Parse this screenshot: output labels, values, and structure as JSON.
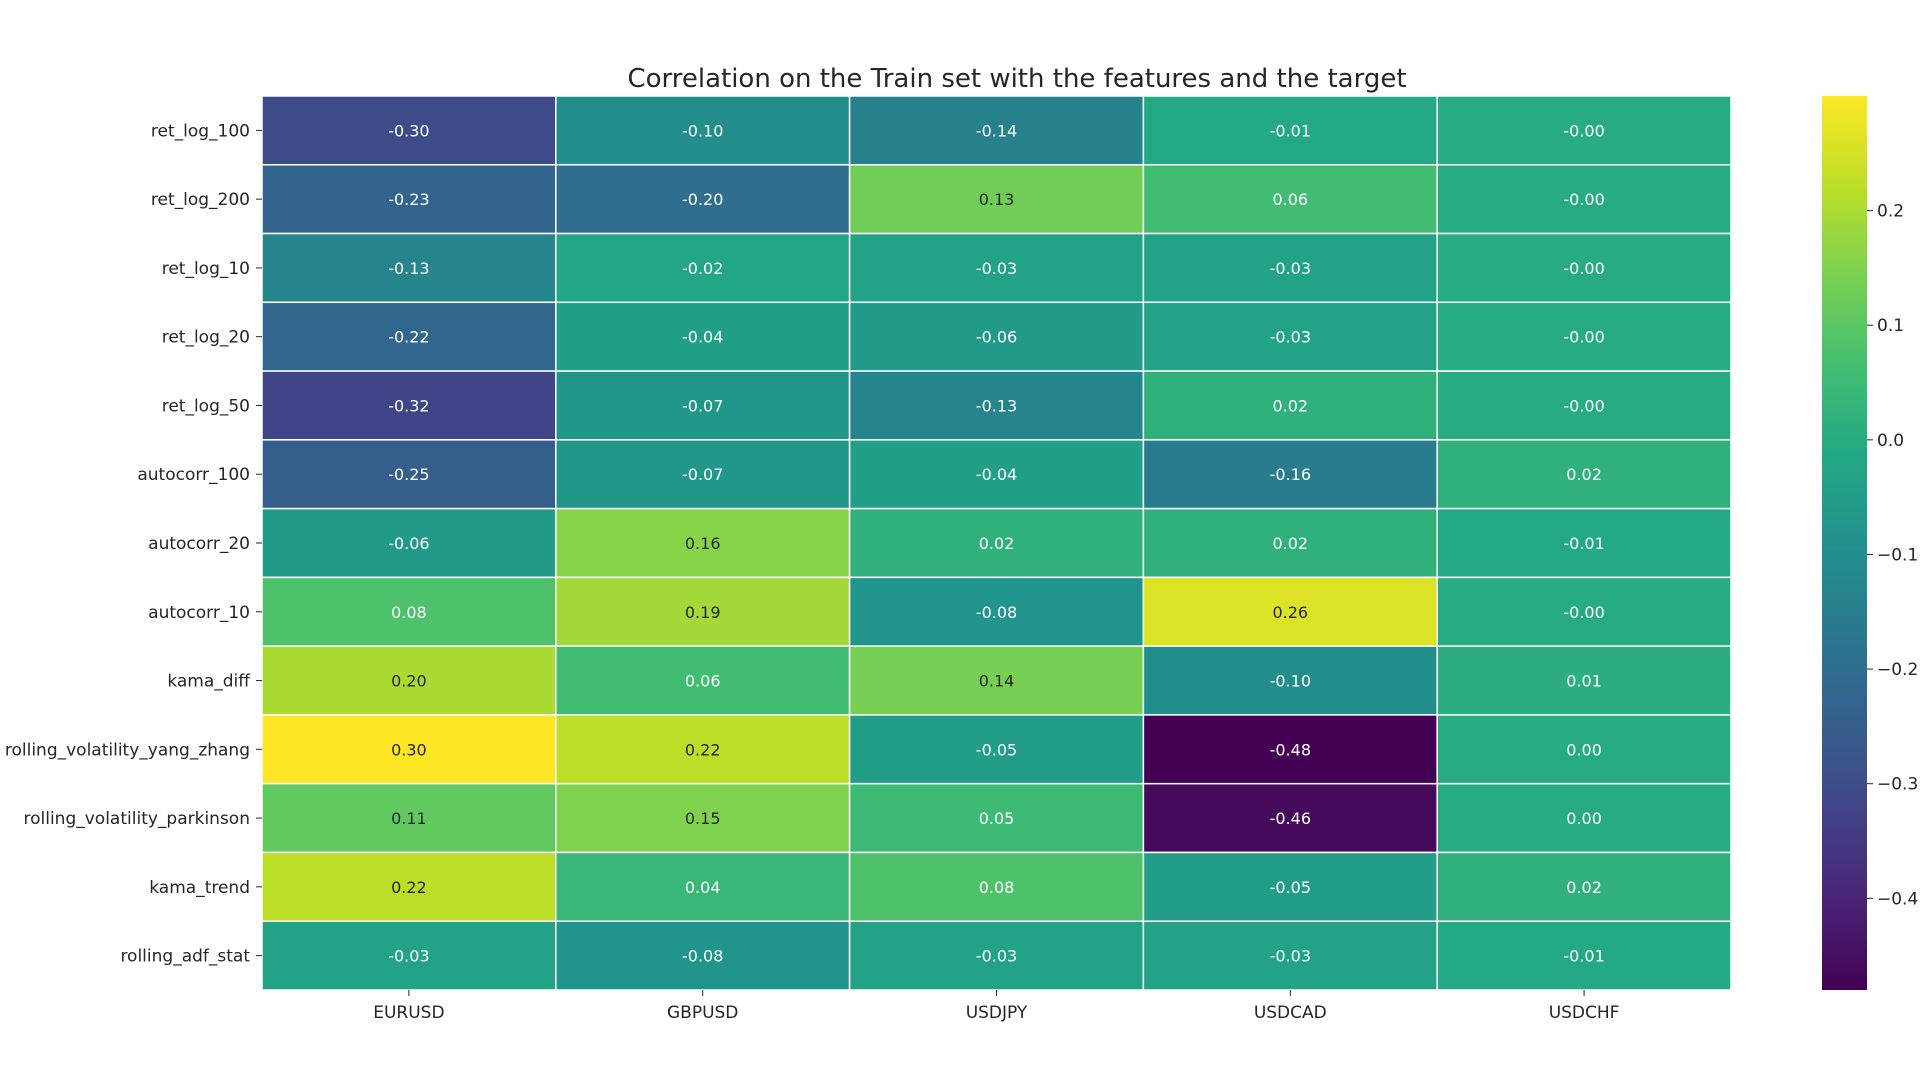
{
  "chart_data": {
    "type": "heatmap",
    "title": "Correlation on the Train set with the features and the target",
    "colormap": "viridis",
    "columns": [
      "EURUSD",
      "GBPUSD",
      "USDJPY",
      "USDCAD",
      "USDCHF"
    ],
    "rows": [
      "ret_log_100",
      "ret_log_200",
      "ret_log_10",
      "ret_log_20",
      "ret_log_50",
      "autocorr_100",
      "autocorr_20",
      "autocorr_10",
      "kama_diff",
      "rolling_volatility_yang_zhang",
      "rolling_volatility_parkinson",
      "kama_trend",
      "rolling_adf_stat"
    ],
    "values": [
      [
        -0.3,
        -0.1,
        -0.14,
        -0.01,
        -0.0
      ],
      [
        -0.23,
        -0.2,
        0.13,
        0.06,
        -0.0
      ],
      [
        -0.13,
        -0.02,
        -0.03,
        -0.03,
        -0.0
      ],
      [
        -0.22,
        -0.04,
        -0.06,
        -0.03,
        -0.0
      ],
      [
        -0.32,
        -0.07,
        -0.13,
        0.02,
        -0.0
      ],
      [
        -0.25,
        -0.07,
        -0.04,
        -0.16,
        0.02
      ],
      [
        -0.06,
        0.16,
        0.02,
        0.02,
        -0.01
      ],
      [
        0.08,
        0.19,
        -0.08,
        0.26,
        -0.0
      ],
      [
        0.2,
        0.06,
        0.14,
        -0.1,
        0.01
      ],
      [
        0.3,
        0.22,
        -0.05,
        -0.48,
        0.0
      ],
      [
        0.11,
        0.15,
        0.05,
        -0.46,
        0.0
      ],
      [
        0.22,
        0.04,
        0.08,
        -0.05,
        0.02
      ],
      [
        -0.03,
        -0.08,
        -0.03,
        -0.03,
        -0.01
      ]
    ],
    "labels": [
      [
        "-0.30",
        "-0.10",
        "-0.14",
        "-0.01",
        "-0.00"
      ],
      [
        "-0.23",
        "-0.20",
        "0.13",
        "0.06",
        "-0.00"
      ],
      [
        "-0.13",
        "-0.02",
        "-0.03",
        "-0.03",
        "-0.00"
      ],
      [
        "-0.22",
        "-0.04",
        "-0.06",
        "-0.03",
        "-0.00"
      ],
      [
        "-0.32",
        "-0.07",
        "-0.13",
        "0.02",
        "-0.00"
      ],
      [
        "-0.25",
        "-0.07",
        "-0.04",
        "-0.16",
        "0.02"
      ],
      [
        "-0.06",
        "0.16",
        "0.02",
        "0.02",
        "-0.01"
      ],
      [
        "0.08",
        "0.19",
        "-0.08",
        "0.26",
        "-0.00"
      ],
      [
        "0.20",
        "0.06",
        "0.14",
        "-0.10",
        "0.01"
      ],
      [
        "0.30",
        "0.22",
        "-0.05",
        "-0.48",
        "0.00"
      ],
      [
        "0.11",
        "0.15",
        "0.05",
        "-0.46",
        "0.00"
      ],
      [
        "0.22",
        "0.04",
        "0.08",
        "-0.05",
        "0.02"
      ],
      [
        "-0.03",
        "-0.08",
        "-0.03",
        "-0.03",
        "-0.01"
      ]
    ],
    "colorbar": {
      "vmin": -0.48,
      "vmax": 0.3,
      "ticks": [
        0.2,
        0.1,
        0.0,
        -0.1,
        -0.2,
        -0.3,
        -0.4
      ],
      "tick_labels": [
        "0.2",
        "0.1",
        "0.0",
        "−0.1",
        "−0.2",
        "−0.3",
        "−0.4"
      ]
    },
    "grid": true,
    "xlabel": "",
    "ylabel": ""
  }
}
